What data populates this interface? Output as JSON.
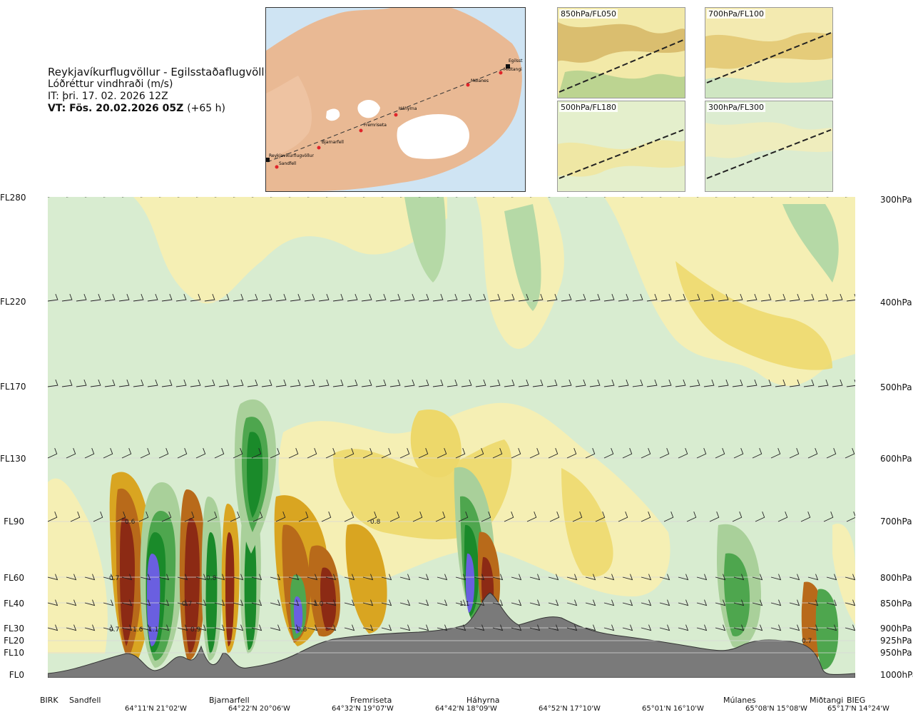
{
  "title": {
    "route": "Reykjavíkurflugvöllur - Egilsstaðaflugvöllur",
    "field": "Lóðréttur vindhraði (m/s)",
    "issue": "IT: þri. 17. 02. 2026 12Z",
    "valid": "VT: Fös. 20.02.2026 05Z",
    "lead": "(+65 h)"
  },
  "route_map": {
    "labels": [
      "Egilsst",
      "Miðtangi",
      "Múlanes",
      "Háhyrna",
      "Fremriseta",
      "Bjarnarfell",
      "Reykjavíkurflugvöllur",
      "Sandfell"
    ]
  },
  "level_maps": [
    {
      "label": "850hPa/FL050"
    },
    {
      "label": "700hPa/FL100"
    },
    {
      "label": "500hPa/FL180"
    },
    {
      "label": "300hPa/FL300"
    }
  ],
  "flight_levels": [
    "FL280",
    "FL220",
    "FL170",
    "FL130",
    "FL90",
    "FL60",
    "FL40",
    "FL30",
    "FL20",
    "FL10",
    "FL0"
  ],
  "pressure_levels": [
    "300hPa",
    "400hPa",
    "500hPa",
    "600hPa",
    "700hPa",
    "800hPa",
    "850hPa",
    "900hPa",
    "925hPa",
    "950hPa",
    "1000hPa"
  ],
  "stations": [
    "BIRK",
    "Sandfell",
    "Bjarnarfell",
    "Fremriseta",
    "Háhyrna",
    "Múlanes",
    "Miðtangi",
    "BIEG"
  ],
  "coordinates": [
    "64°11'N 21°02'W",
    "64°22'N 20°06'W",
    "64°32'N 19°07'W",
    "64°42'N 18°09'W",
    "64°52'N 17°10'W",
    "65°01'N 16°10'W",
    "65°08'N 15°08'W",
    "65°17'N 14°24'W"
  ],
  "value_labels": [
    "0.6",
    "0.7",
    "0.8",
    "0.7",
    "0.7",
    "1.6",
    "1.1",
    "0.9",
    "0.8",
    "1.0",
    "0.8",
    "1.1",
    "0.7"
  ],
  "colors": {
    "pos_light": "#f5efb4",
    "pos_mid": "#edd86a",
    "pos_strong": "#d9a521",
    "pos_stronger": "#b86a1a",
    "pos_max": "#8c2a14",
    "neg_light": "#d4eacc",
    "neg_mid": "#a9d09a",
    "neg_strong": "#4ea64e",
    "neg_max": "#1a8a2a",
    "extreme": "#6a5fe0",
    "terrain": "#7a7a7a",
    "glacier": "#ffffff",
    "land": "#e9b994",
    "sea": "#cfe4f3",
    "route_marker": "#e0242a"
  }
}
